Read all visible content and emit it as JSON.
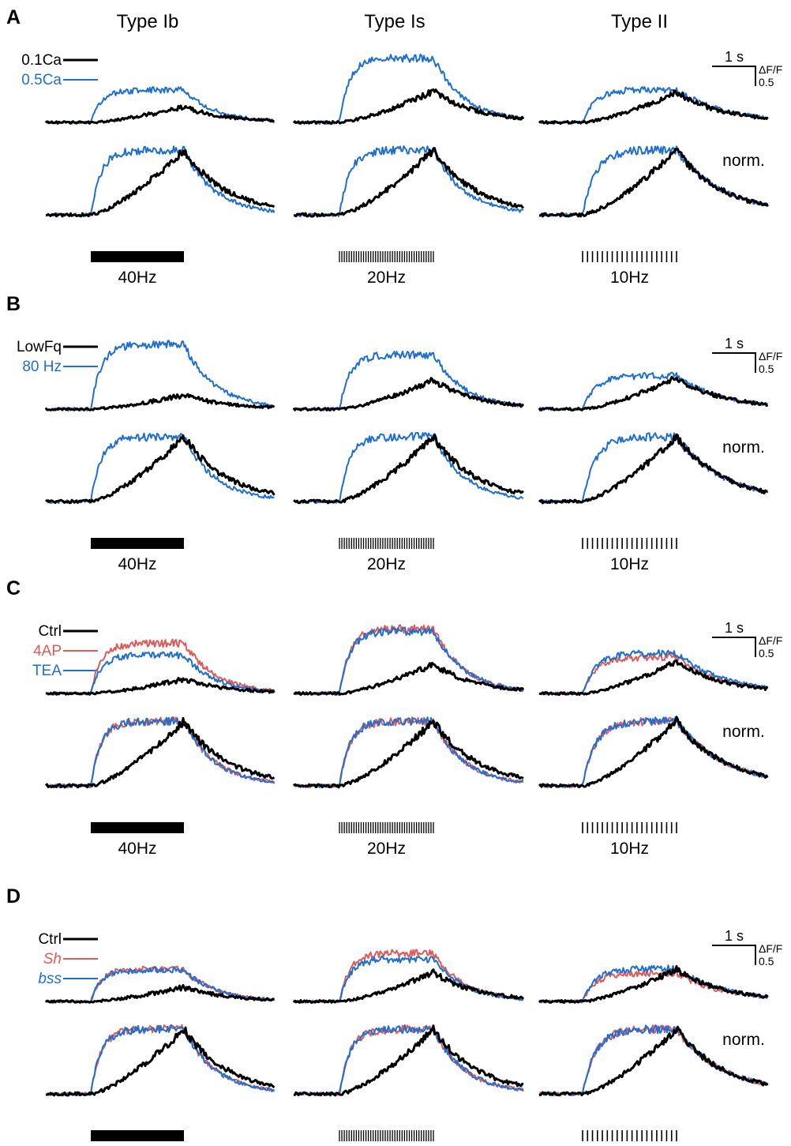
{
  "figure": {
    "columns": [
      "Type Ib",
      "Type Is",
      "Type II"
    ],
    "norm_label": "norm.",
    "scalebar": {
      "time_label": "1 s",
      "amp_label": "ΔF/F",
      "amp_value": "0.5"
    },
    "colors": {
      "black": "#000000",
      "blue": "#1f6fd1",
      "red": "#e05a5a"
    },
    "stimulus": [
      {
        "label": "40Hz",
        "style": "solid",
        "ticks": 0
      },
      {
        "label": "20Hz",
        "style": "dense",
        "ticks": 40
      },
      {
        "label": "10Hz",
        "style": "sparse",
        "ticks": 20
      }
    ]
  },
  "chart_data": [
    {
      "type": "line",
      "panel": "A",
      "legend": [
        {
          "label": "0.1Ca",
          "color": "black",
          "italic": false
        },
        {
          "label": "0.5Ca",
          "color": "blue",
          "italic": false
        }
      ],
      "raw": [
        [
          {
            "color": "black",
            "amp": 0.38
          },
          {
            "color": "blue",
            "amp": 0.8
          }
        ],
        [
          {
            "color": "black",
            "amp": 0.78
          },
          {
            "color": "blue",
            "amp": 1.6
          }
        ],
        [
          {
            "color": "black",
            "amp": 0.74
          },
          {
            "color": "blue",
            "amp": 0.82
          }
        ]
      ]
    },
    {
      "type": "line",
      "panel": "B",
      "legend": [
        {
          "label": "LowFq",
          "color": "black",
          "italic": false
        },
        {
          "label": "80 Hz",
          "color": "blue",
          "italic": false
        }
      ],
      "raw": [
        [
          {
            "color": "black",
            "amp": 0.35
          },
          {
            "color": "blue",
            "amp": 1.6
          }
        ],
        [
          {
            "color": "black",
            "amp": 0.72
          },
          {
            "color": "blue",
            "amp": 1.35
          }
        ],
        [
          {
            "color": "black",
            "amp": 0.78
          },
          {
            "color": "blue",
            "amp": 0.83
          }
        ]
      ]
    },
    {
      "type": "line",
      "panel": "C",
      "legend": [
        {
          "label": "Ctrl",
          "color": "black",
          "italic": false
        },
        {
          "label": "4AP",
          "color": "red",
          "italic": false
        },
        {
          "label": "TEA",
          "color": "blue",
          "italic": false
        }
      ],
      "raw": [
        [
          {
            "color": "black",
            "amp": 0.35
          },
          {
            "color": "red",
            "amp": 1.25
          },
          {
            "color": "blue",
            "amp": 0.95
          }
        ],
        [
          {
            "color": "black",
            "amp": 0.72
          },
          {
            "color": "red",
            "amp": 1.6
          },
          {
            "color": "blue",
            "amp": 1.55
          }
        ],
        [
          {
            "color": "black",
            "amp": 0.78
          },
          {
            "color": "red",
            "amp": 0.9
          },
          {
            "color": "blue",
            "amp": 1.0
          }
        ]
      ]
    },
    {
      "type": "line",
      "panel": "D",
      "legend": [
        {
          "label": "Ctrl",
          "color": "black",
          "italic": false
        },
        {
          "label": "Sh",
          "color": "red",
          "italic": true
        },
        {
          "label": "bss",
          "color": "blue",
          "italic": true
        }
      ],
      "raw": [
        [
          {
            "color": "black",
            "amp": 0.35
          },
          {
            "color": "red",
            "amp": 0.8
          },
          {
            "color": "blue",
            "amp": 0.78
          }
        ],
        [
          {
            "color": "black",
            "amp": 0.72
          },
          {
            "color": "red",
            "amp": 1.2
          },
          {
            "color": "blue",
            "amp": 1.05
          }
        ],
        [
          {
            "color": "black",
            "amp": 0.8
          },
          {
            "color": "red",
            "amp": 0.7
          },
          {
            "color": "blue",
            "amp": 0.82
          }
        ]
      ]
    }
  ]
}
